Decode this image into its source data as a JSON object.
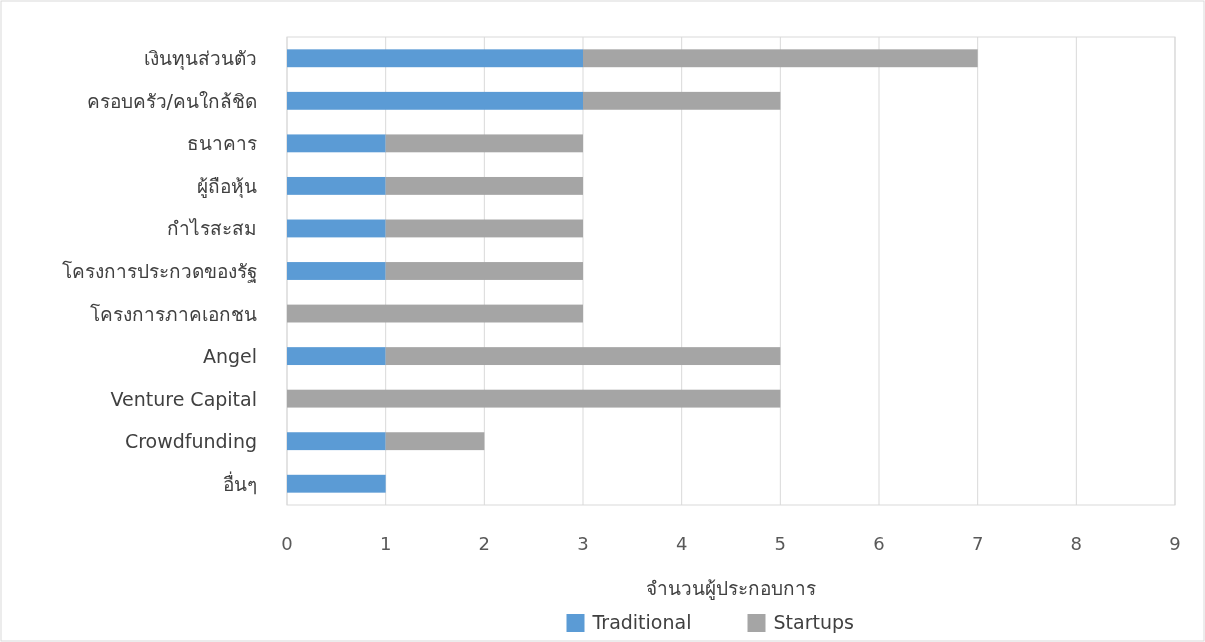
{
  "chart_data": {
    "type": "bar",
    "orientation": "horizontal",
    "stacked": true,
    "categories": [
      "เงินทุนส่วนตัว",
      "ครอบครัว/คนใกล้ชิด",
      "ธนาคาร",
      "ผู้ถือหุ้น",
      "กำไรสะสม",
      "โครงการประกวดของรัฐ",
      "โครงการภาคเอกชน",
      "Angel",
      "Venture Capital",
      "Crowdfunding",
      "อื่นๆ"
    ],
    "series": [
      {
        "name": "Traditional",
        "color": "#5b9bd5",
        "values": [
          3,
          3,
          1,
          1,
          1,
          1,
          0,
          1,
          0,
          1,
          1
        ]
      },
      {
        "name": "Startups",
        "color": "#a5a5a5",
        "values": [
          4,
          2,
          2,
          2,
          2,
          2,
          3,
          4,
          5,
          1,
          0
        ]
      }
    ],
    "xlim": [
      0,
      9
    ],
    "xticks": [
      0,
      1,
      2,
      3,
      4,
      5,
      6,
      7,
      8,
      9
    ],
    "xlabel": "จำนวนผู้ประกอบการ",
    "grid": "x",
    "legend": "bottom"
  }
}
